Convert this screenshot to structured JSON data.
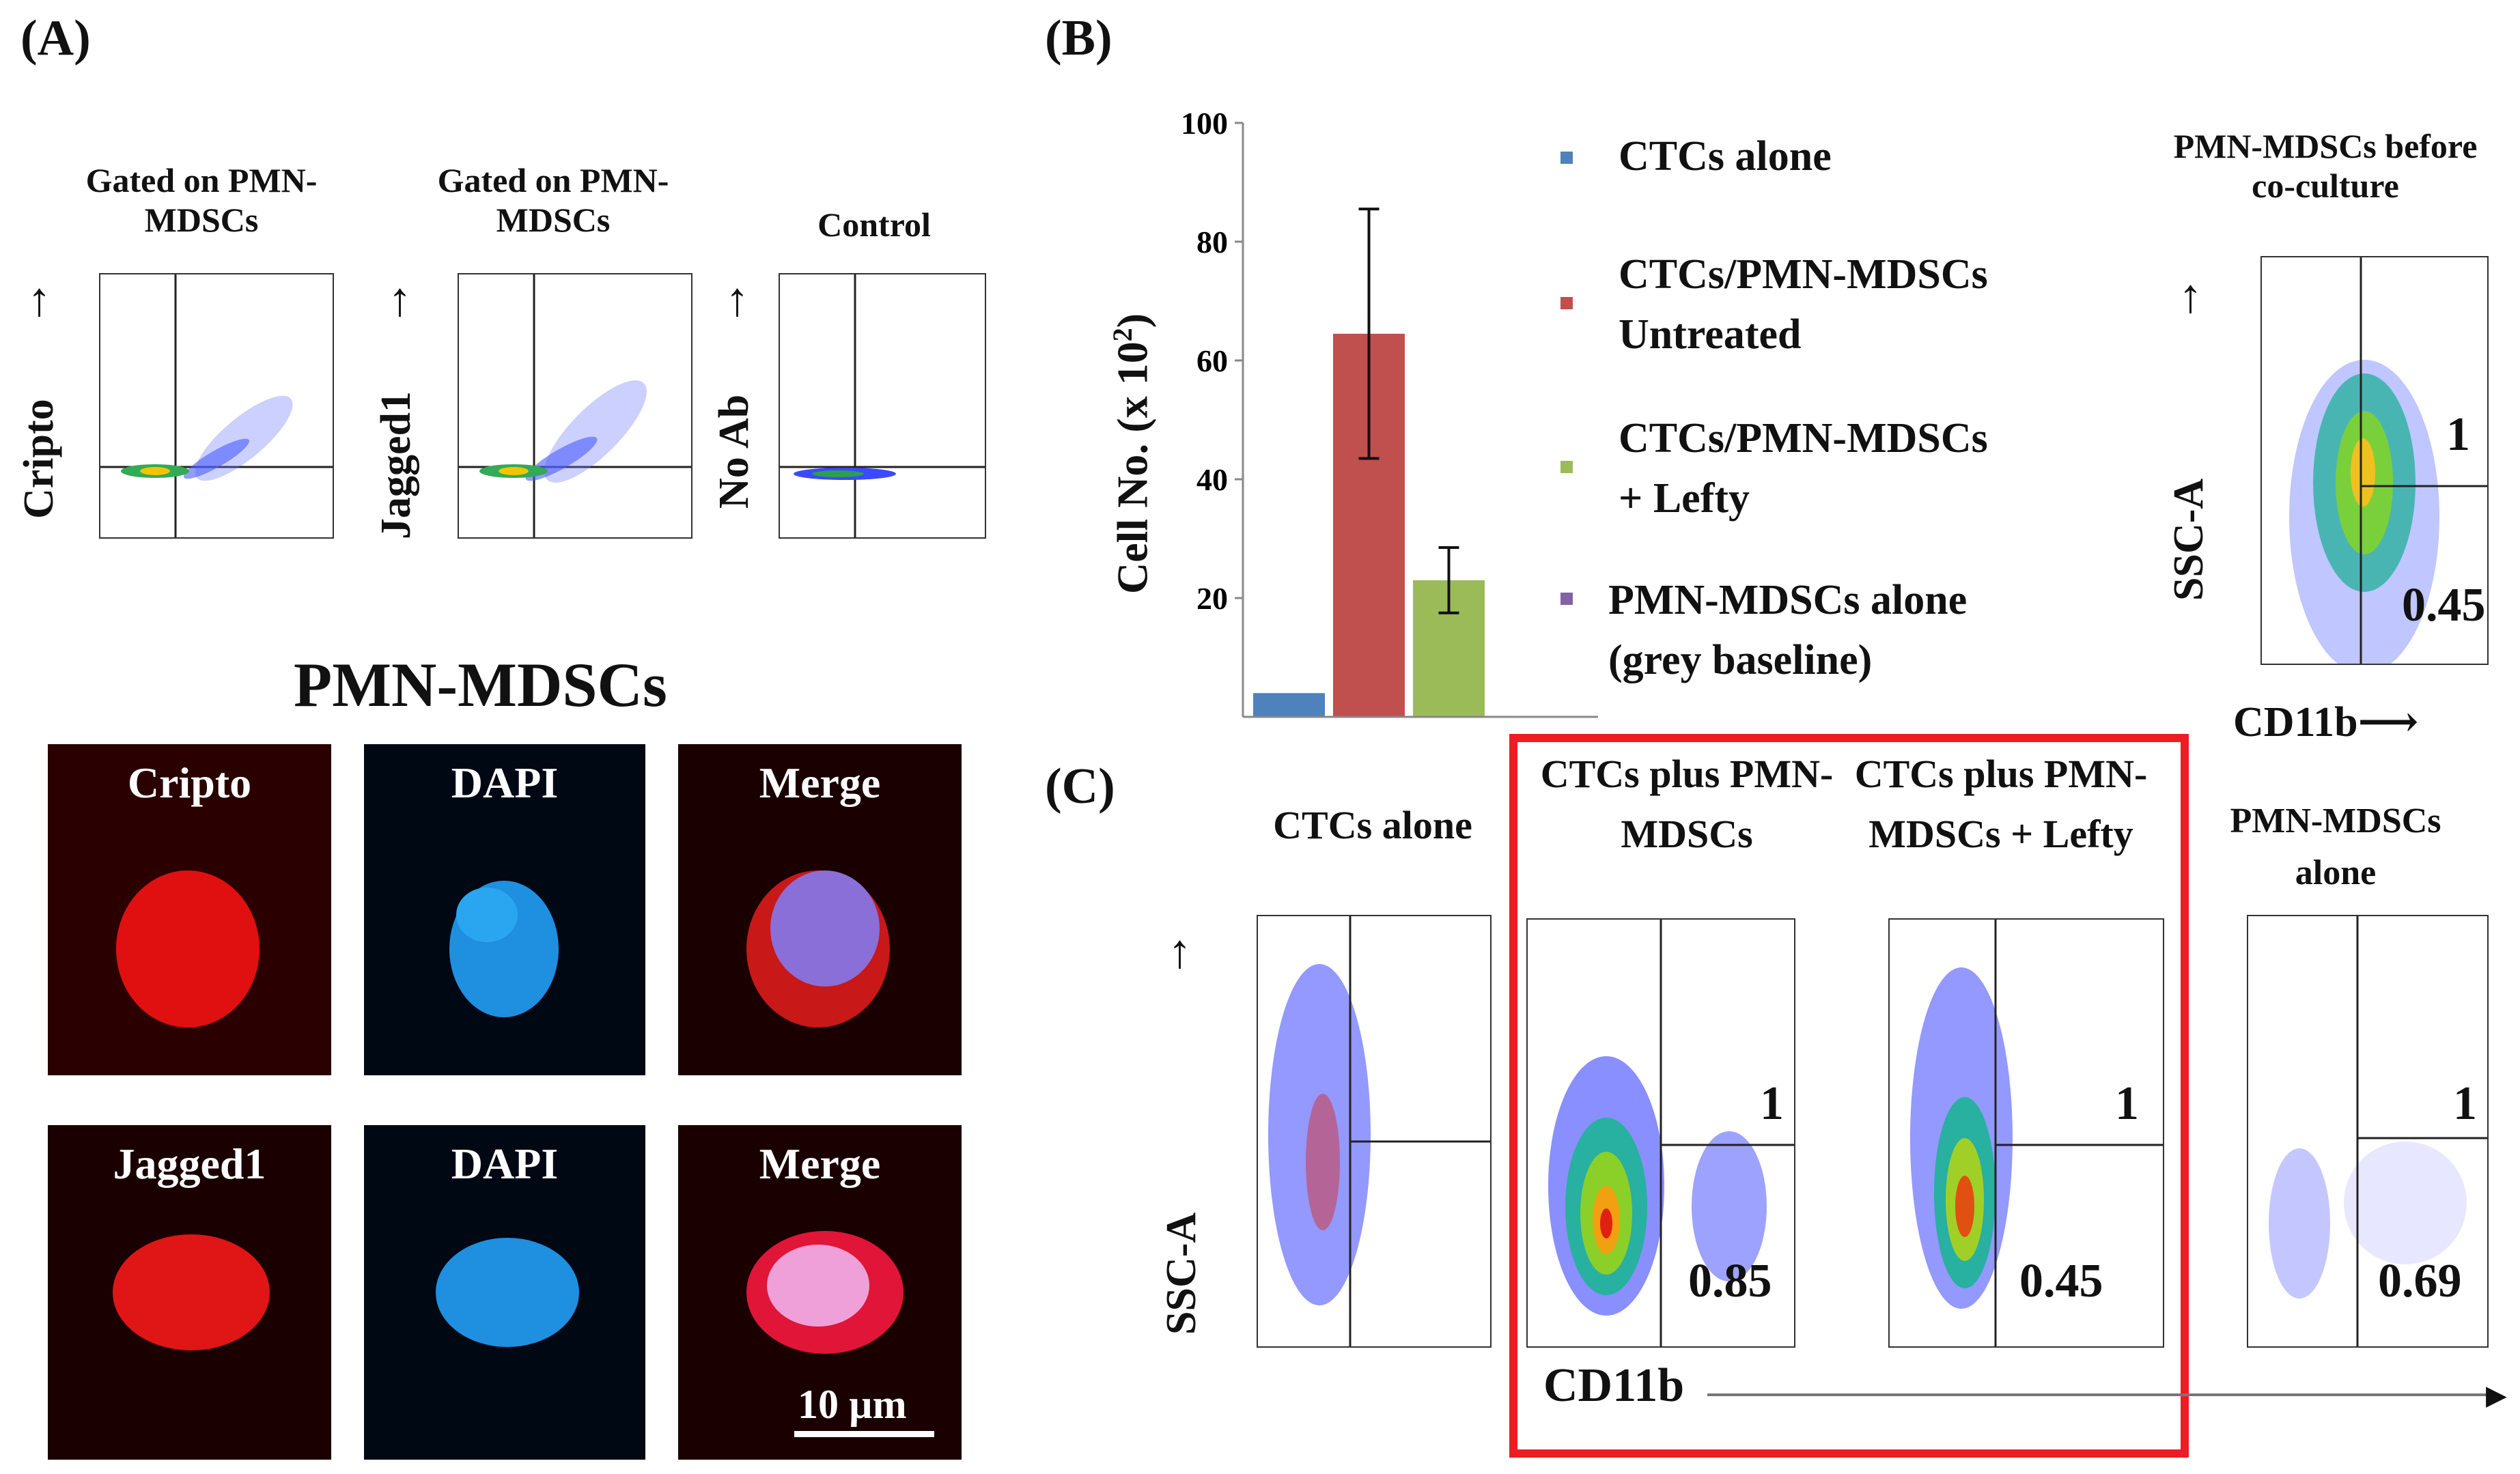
{
  "panels": {
    "a": "(A)",
    "b": "(B)",
    "c": "(C)"
  },
  "panel_a": {
    "flow_plots": [
      {
        "title": "Gated on PMN-MDSCs",
        "ylabel": "Cripto"
      },
      {
        "title": "Gated on PMN-MDSCs",
        "ylabel": "Jagged1"
      },
      {
        "title": "Control",
        "ylabel": "No Ab"
      }
    ],
    "micro_title": "PMN-MDSCs",
    "micro_row1": [
      "Cripto",
      "DAPI",
      "Merge"
    ],
    "micro_row2": [
      "Jagged1",
      "DAPI",
      "Merge"
    ],
    "scale_bar": "10 µm"
  },
  "chart_data": {
    "type": "bar",
    "title": "",
    "xlabel": "",
    "ylabel": "Cell No. (x 10",
    "ylabel_sup": "2",
    "ylabel_end": ")",
    "ylim": [
      0,
      100
    ],
    "yticks": [
      "100",
      "80",
      "60",
      "40",
      "20"
    ],
    "categories": [
      "CTCs alone",
      "CTCs/PMN-MDSCs Untreated",
      "CTCs/PMN-MDSCs + Lefty",
      "PMN-MDSCs alone (grey baseline)"
    ],
    "values": [
      4,
      64.5,
      23,
      0
    ],
    "errors": [
      0,
      21,
      5.5,
      0
    ],
    "colors": [
      "#4f81bd",
      "#c0504d",
      "#9bbb59",
      "#8064a2"
    ],
    "legend": [
      {
        "line1": "CTCs alone",
        "line2": ""
      },
      {
        "line1": "CTCs/PMN-MDSCs",
        "line2": "Untreated"
      },
      {
        "line1": "CTCs/PMN-MDSCs",
        "line2": "+ Lefty"
      },
      {
        "line1": "PMN-MDSCs alone",
        "line2": "(grey baseline)"
      }
    ]
  },
  "panel_b_flow": {
    "title": "PMN-MDSCs before co-culture",
    "ylabel": "SSC-A",
    "xlabel": "CD11b",
    "upper": "1",
    "lower": "0.45"
  },
  "panel_c": {
    "ylabel": "SSC-A",
    "xlabel": "CD11b",
    "plots": [
      {
        "title": "CTCs alone",
        "upper": "",
        "lower": ""
      },
      {
        "title": "CTCs plus PMN-MDSCs",
        "upper": "1",
        "lower": "0.85"
      },
      {
        "title": "CTCs plus PMN-MDSCs + Lefty",
        "upper": "1",
        "lower": "0.45"
      },
      {
        "title": "PMN-MDSCs alone",
        "upper": "1",
        "lower": "0.69"
      }
    ]
  }
}
